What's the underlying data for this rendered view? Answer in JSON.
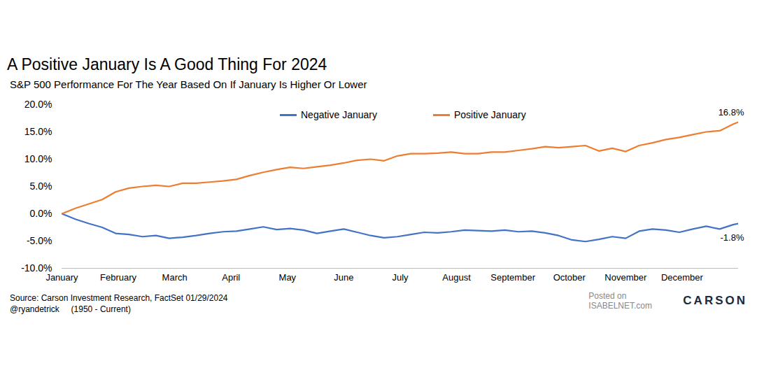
{
  "chart_data": {
    "type": "line",
    "title": "A Positive January Is A Good Thing For 2024",
    "subtitle": "S&P 500 Performance For The Year Based On If January Is Higher Or Lower",
    "source": "Source: Carson Investment Research, FactSet 01/29/2024",
    "credit": "@ryandetrick",
    "period": "(1950 - Current)",
    "watermark": [
      "Posted on",
      "ISABELNET.com"
    ],
    "logo": "CARSON",
    "legend": "top",
    "grid": false,
    "x": [
      0,
      5,
      10,
      15,
      20,
      25,
      30,
      35,
      40,
      45,
      50,
      55,
      60,
      65,
      70,
      75,
      80,
      85,
      90,
      95,
      100,
      105,
      110,
      115,
      120,
      125,
      130,
      135,
      140,
      145,
      150,
      155,
      160,
      165,
      170,
      175,
      180,
      185,
      190,
      195,
      200,
      205,
      210,
      215,
      220,
      225,
      230,
      235,
      240,
      245,
      250,
      252
    ],
    "series": [
      {
        "name": "Negative January",
        "color": "#4472C4",
        "values": [
          0,
          -1.0,
          -1.8,
          -2.5,
          -3.6,
          -3.8,
          -4.2,
          -4.0,
          -4.5,
          -4.3,
          -4.0,
          -3.6,
          -3.3,
          -3.2,
          -2.8,
          -2.4,
          -2.9,
          -2.7,
          -3.0,
          -3.6,
          -3.2,
          -2.8,
          -3.4,
          -4.0,
          -4.4,
          -4.2,
          -3.8,
          -3.4,
          -3.5,
          -3.3,
          -3.0,
          -3.1,
          -3.2,
          -3.0,
          -3.3,
          -3.2,
          -3.5,
          -4.0,
          -4.8,
          -5.1,
          -4.7,
          -4.2,
          -4.5,
          -3.2,
          -2.8,
          -3.0,
          -3.4,
          -2.8,
          -2.3,
          -2.8,
          -2.0,
          -1.8
        ]
      },
      {
        "name": "Positive January",
        "color": "#ED7D31",
        "values": [
          0,
          1.0,
          1.8,
          2.6,
          4.0,
          4.7,
          5.0,
          5.2,
          5.0,
          5.6,
          5.6,
          5.8,
          6.0,
          6.3,
          7.0,
          7.6,
          8.1,
          8.5,
          8.3,
          8.6,
          8.9,
          9.3,
          9.8,
          10.0,
          9.7,
          10.6,
          11.0,
          11.0,
          11.1,
          11.3,
          11.0,
          11.0,
          11.3,
          11.3,
          11.6,
          11.9,
          12.3,
          12.1,
          12.3,
          12.5,
          11.5,
          12.0,
          11.4,
          12.5,
          13.0,
          13.6,
          14.0,
          14.5,
          15.0,
          15.2,
          16.4,
          16.8
        ]
      }
    ],
    "annotations": [
      {
        "text": "16.8%",
        "x": 252,
        "y": 16.8
      },
      {
        "text": "-1.8%",
        "x": 252,
        "y": -1.8
      }
    ],
    "xlim": [
      0,
      252
    ],
    "xticks": [
      {
        "value": 0,
        "label": "January"
      },
      {
        "value": 21,
        "label": "February"
      },
      {
        "value": 42,
        "label": "March"
      },
      {
        "value": 63,
        "label": "April"
      },
      {
        "value": 84,
        "label": "May"
      },
      {
        "value": 105,
        "label": "June"
      },
      {
        "value": 126,
        "label": "July"
      },
      {
        "value": 147,
        "label": "August"
      },
      {
        "value": 168,
        "label": "September"
      },
      {
        "value": 189,
        "label": "October"
      },
      {
        "value": 210,
        "label": "November"
      },
      {
        "value": 231,
        "label": "December"
      }
    ],
    "ylim": [
      -10,
      20
    ],
    "yticks": [
      {
        "value": -10,
        "label": "-10.0%"
      },
      {
        "value": -5,
        "label": "-5.0%"
      },
      {
        "value": 0,
        "label": "0.0%"
      },
      {
        "value": 5,
        "label": "5.0%"
      },
      {
        "value": 10,
        "label": "10.0%"
      },
      {
        "value": 15,
        "label": "15.0%"
      },
      {
        "value": 20,
        "label": "20.0%"
      }
    ]
  }
}
